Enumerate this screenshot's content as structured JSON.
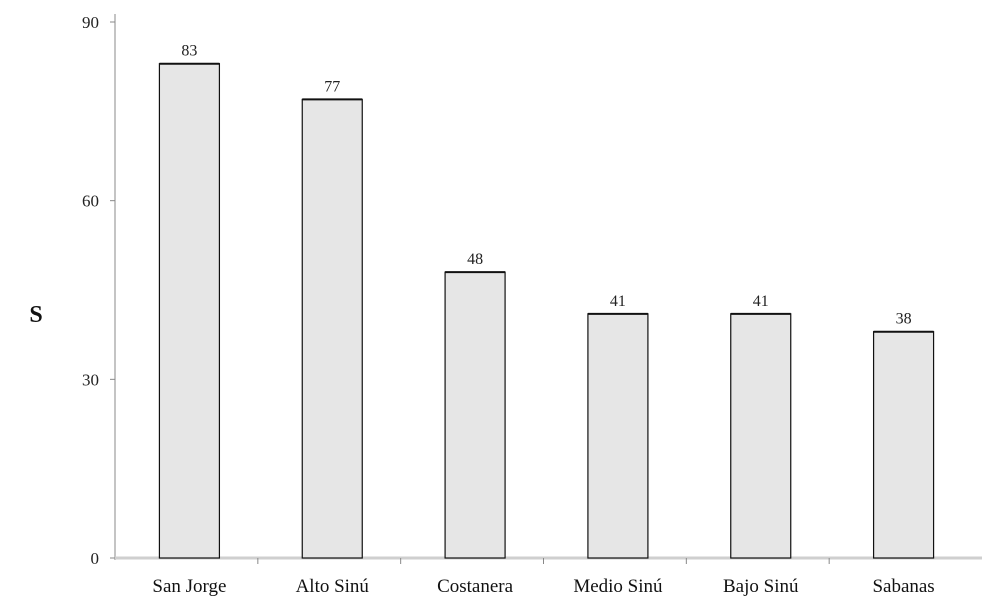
{
  "chart_data": {
    "type": "bar",
    "title": "",
    "xlabel": "",
    "ylabel": "S",
    "categories": [
      "San Jorge",
      "Alto Sinú",
      "Costanera",
      "Medio Sinú",
      "Bajo Sinú",
      "Sabanas"
    ],
    "values": [
      83,
      77,
      48,
      41,
      41,
      38
    ],
    "data_labels": [
      "83",
      "77",
      "48",
      "41",
      "41",
      "38"
    ],
    "ylim": [
      0,
      90
    ],
    "yticks": [
      0,
      30,
      60,
      90
    ],
    "grid": false,
    "legend": "none",
    "colors": {
      "bar_fill": "#e6e6e6",
      "bar_stroke": "#111111",
      "axis": "#888888"
    }
  }
}
